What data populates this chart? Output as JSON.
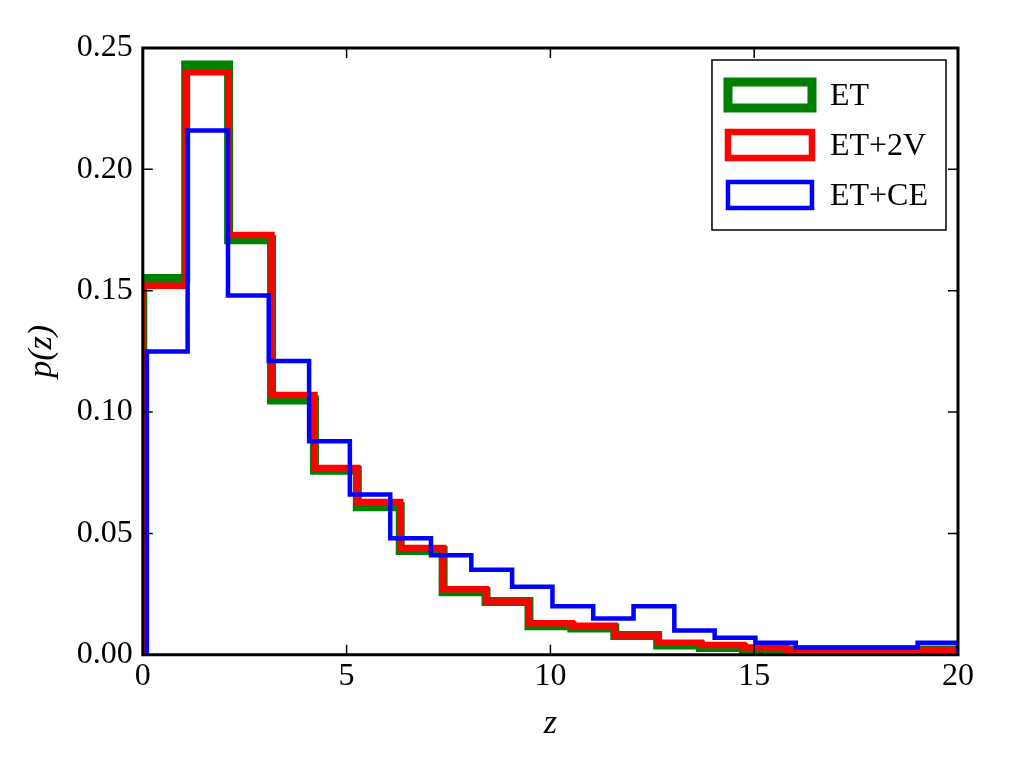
{
  "chart_data": {
    "type": "histogram",
    "xlabel": "z",
    "ylabel": "p(z)",
    "bins": [
      0,
      1.053,
      2.105,
      3.158,
      4.211,
      5.263,
      6.316,
      7.368,
      8.421,
      9.474,
      10.526,
      11.579,
      12.632,
      13.684,
      14.737,
      15.789,
      16.842,
      17.895,
      18.947,
      20
    ],
    "series": [
      {
        "name": "ET",
        "color": "#008000",
        "values": [
          0.155,
          0.243,
          0.171,
          0.105,
          0.076,
          0.061,
          0.043,
          0.026,
          0.022,
          0.012,
          0.011,
          0.008,
          0.004,
          0.003,
          0.002,
          0.002,
          0.002,
          0.002,
          0.002
        ]
      },
      {
        "name": "ET+2V",
        "color": "#ff0000",
        "values": [
          0.152,
          0.24,
          0.173,
          0.107,
          0.077,
          0.063,
          0.044,
          0.027,
          0.022,
          0.013,
          0.012,
          0.008,
          0.005,
          0.004,
          0.003,
          0.002,
          0.002,
          0.002,
          0.002
        ]
      },
      {
        "name": "ET+CE",
        "color": "#0000ff",
        "bins": [
          0.1,
          1.1,
          2.09,
          3.09,
          4.08,
          5.08,
          6.07,
          7.07,
          8.06,
          9.06,
          10.05,
          11.05,
          12.04,
          13.04,
          14.03,
          15.03,
          16.02,
          17.02,
          18.01,
          19.01,
          20
        ],
        "values": [
          0.125,
          0.216,
          0.148,
          0.121,
          0.088,
          0.066,
          0.048,
          0.041,
          0.035,
          0.028,
          0.02,
          0.015,
          0.02,
          0.01,
          0.007,
          0.005,
          0.003,
          0.003,
          0.003,
          0.005
        ]
      }
    ],
    "xlim": [
      0,
      20
    ],
    "xticks": [
      0,
      5,
      10,
      15,
      20
    ],
    "ylim": [
      0,
      0.25
    ],
    "yticks": [
      {
        "value": 0,
        "label": "0.00"
      },
      {
        "value": 0.05,
        "label": "0.05"
      },
      {
        "value": 0.1,
        "label": "0.10"
      },
      {
        "value": 0.15,
        "label": "0.15"
      },
      {
        "value": 0.2,
        "label": "0.20"
      },
      {
        "value": 0.25,
        "label": "0.25"
      }
    ],
    "legend": "top right",
    "grid": false
  }
}
